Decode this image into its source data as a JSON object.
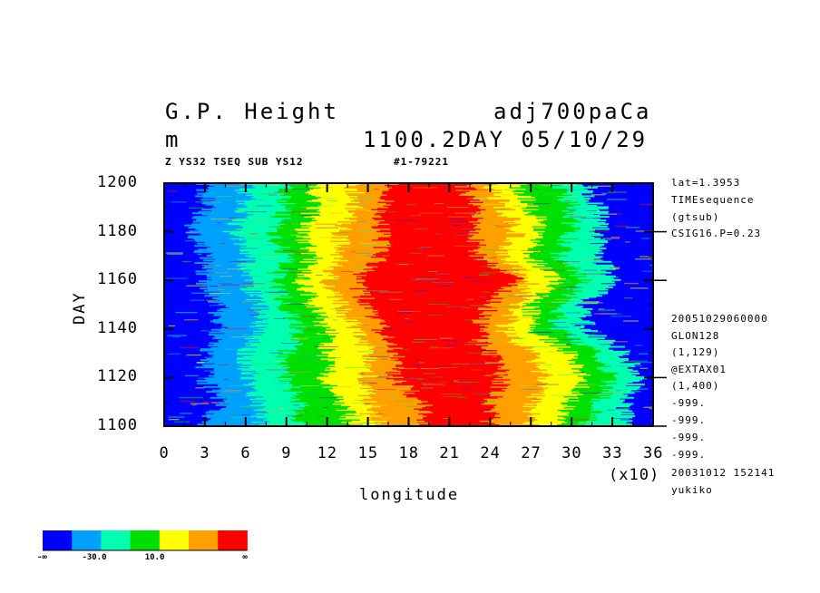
{
  "header": {
    "title_left": "G.P. Height",
    "title_right": "adj700paCa",
    "unit": "m",
    "time_label": "1100.2DAY 05/10/29",
    "subtitle_left": "Z YS32 TSEQ SUB YS12",
    "subtitle_right": "#1-79221"
  },
  "side_labels": [
    "lat=1.3953",
    "TIMEsequence",
    "(gtsub)",
    "CSIG16.P=0.23",
    "20051029060000",
    "GLON128",
    "(1,129)",
    "@EXTAX01",
    "(1,400)",
    "-999.",
    "-999.",
    "-999.",
    "-999.",
    "20031012 152141",
    "yukiko"
  ],
  "chart_data": {
    "type": "heatmap",
    "title": "G.P. Height",
    "xlabel": "longitude",
    "xlabel_scale": "(x10)",
    "ylabel": "DAY",
    "xlim": [
      0,
      36
    ],
    "ylim": [
      1100,
      1200
    ],
    "x_ticks": [
      "0",
      "3",
      "6",
      "9",
      "12",
      "15",
      "18",
      "21",
      "24",
      "27",
      "30",
      "33",
      "36"
    ],
    "y_ticks": [
      "1100",
      "1120",
      "1140",
      "1160",
      "1180",
      "1200"
    ],
    "band_x_per_day": [
      [
        1100,
        3,
        7,
        10,
        14,
        16,
        19,
        24,
        27,
        29,
        31,
        34
      ],
      [
        1110,
        4,
        7,
        10,
        13,
        15,
        19,
        24,
        27,
        30,
        32,
        34
      ],
      [
        1120,
        3,
        6,
        9,
        12,
        15,
        17,
        25,
        28,
        31,
        33,
        35
      ],
      [
        1130,
        3,
        6,
        9,
        12,
        15,
        17,
        24,
        27,
        30,
        32,
        34
      ],
      [
        1140,
        4,
        7,
        10,
        12,
        14,
        16,
        23,
        25,
        27,
        29,
        31
      ],
      [
        1150,
        4,
        7,
        9,
        11,
        13,
        15,
        24,
        26,
        27,
        29,
        31
      ],
      [
        1160,
        3,
        6,
        8,
        10,
        12,
        14,
        26,
        27,
        29,
        31,
        33
      ],
      [
        1170,
        3,
        6,
        9,
        11,
        13,
        16,
        23,
        25,
        27,
        29,
        32
      ],
      [
        1180,
        2,
        5,
        8,
        10,
        13,
        16,
        23,
        26,
        28,
        30,
        32
      ],
      [
        1190,
        3,
        6,
        9,
        11,
        14,
        16,
        23,
        25,
        27,
        30,
        32
      ],
      [
        1200,
        3,
        6,
        9,
        11,
        14,
        17,
        22,
        24,
        26,
        29,
        31
      ]
    ],
    "colorbar": {
      "colors": [
        "#0000ff",
        "#00a0ff",
        "#00ffb0",
        "#00e000",
        "#ffff00",
        "#ffa000",
        "#ff0000"
      ],
      "labels": [
        "-∞",
        "-30.0",
        "10.0",
        "∞"
      ]
    }
  }
}
